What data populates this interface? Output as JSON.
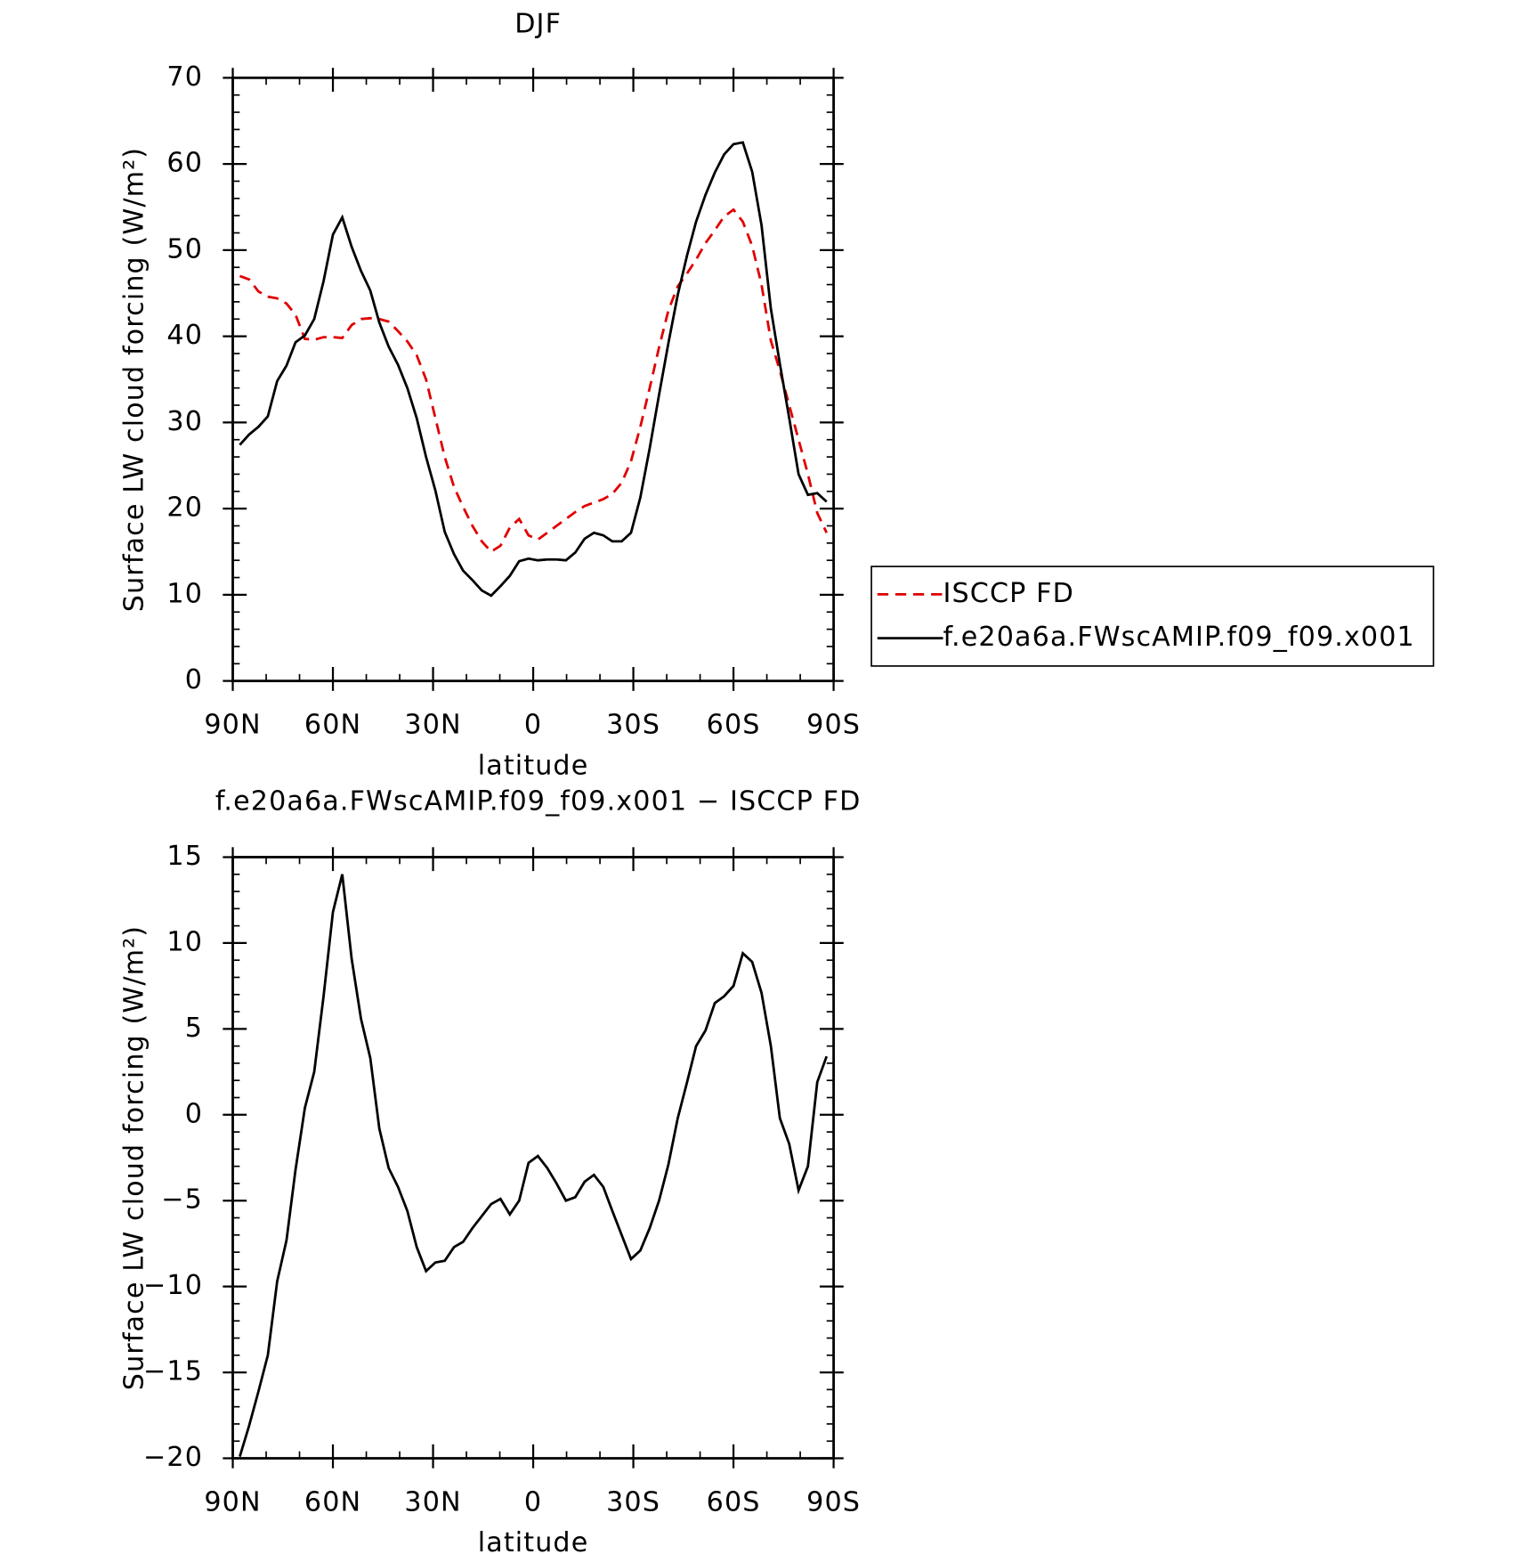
{
  "chart_data": [
    {
      "type": "line",
      "title": "DJF",
      "xlabel": "latitude",
      "ylabel": "Surface LW cloud forcing (W/m²)",
      "x": [
        87.9,
        85.1,
        82.3,
        79.5,
        76.7,
        73.9,
        71.2,
        68.4,
        65.6,
        62.8,
        60.0,
        57.2,
        54.4,
        51.6,
        48.8,
        46.1,
        43.3,
        40.5,
        37.7,
        34.9,
        32.1,
        29.3,
        26.5,
        23.7,
        21.0,
        18.2,
        15.4,
        12.6,
        9.8,
        7.0,
        4.2,
        1.4,
        -1.4,
        -4.2,
        -7.0,
        -9.8,
        -12.6,
        -15.4,
        -18.2,
        -21.0,
        -23.7,
        -26.5,
        -29.3,
        -32.1,
        -34.9,
        -37.7,
        -40.5,
        -43.3,
        -46.1,
        -48.8,
        -51.6,
        -54.4,
        -57.2,
        -60.0,
        -62.8,
        -65.6,
        -68.4,
        -71.2,
        -73.9,
        -76.7,
        -79.5,
        -82.3,
        -85.1,
        -87.9
      ],
      "series": [
        {
          "name": "ISCCP FD",
          "color": "#e00000",
          "dash": "dashed",
          "values": [
            47.0,
            46.6,
            45.2,
            44.6,
            44.4,
            43.8,
            42.5,
            39.7,
            39.6,
            39.9,
            39.9,
            39.8,
            41.3,
            42.0,
            42.1,
            42.0,
            41.7,
            40.6,
            39.4,
            37.8,
            35.0,
            30.5,
            26.0,
            22.5,
            20.2,
            18.0,
            16.2,
            15.0,
            15.7,
            17.8,
            18.8,
            16.9,
            16.4,
            17.2,
            18.0,
            18.8,
            19.6,
            20.3,
            20.7,
            21.1,
            21.7,
            23.0,
            25.5,
            29.5,
            34.0,
            38.7,
            43.0,
            45.8,
            47.3,
            48.9,
            50.8,
            52.3,
            53.9,
            54.7,
            53.3,
            50.5,
            46.0,
            39.5,
            36.0,
            32.0,
            28.0,
            24.0,
            19.5,
            17.2
          ]
        },
        {
          "name": "f.e20a6a.FWscAMIP.f09_f09.x001",
          "color": "#000000",
          "dash": "solid",
          "values": [
            27.4,
            28.6,
            29.5,
            30.7,
            34.8,
            36.6,
            39.3,
            40.1,
            42.0,
            46.4,
            51.8,
            53.8,
            50.4,
            47.6,
            45.3,
            41.6,
            38.8,
            36.7,
            34.0,
            30.5,
            26.0,
            22.1,
            17.3,
            14.7,
            12.8,
            11.7,
            10.5,
            9.9,
            11.0,
            12.2,
            13.9,
            14.2,
            14.0,
            14.1,
            14.1,
            14.0,
            14.9,
            16.5,
            17.2,
            16.9,
            16.2,
            16.2,
            17.2,
            21.3,
            27.0,
            33.2,
            39.2,
            44.8,
            49.4,
            53.3,
            56.4,
            59.0,
            61.1,
            62.3,
            62.5,
            59.1,
            52.9,
            43.2,
            36.8,
            30.5,
            24.0,
            21.6,
            21.8,
            20.8
          ]
        }
      ],
      "xlim": [
        90,
        -90
      ],
      "xticks": [
        {
          "value": 90,
          "label": "90N"
        },
        {
          "value": 60,
          "label": "60N"
        },
        {
          "value": 30,
          "label": "30N"
        },
        0,
        {
          "value": -30,
          "label": "30S"
        },
        {
          "value": -60,
          "label": "60S"
        },
        {
          "value": -90,
          "label": "90S"
        }
      ],
      "ylim": [
        0,
        70
      ],
      "yticks": [
        0,
        10,
        20,
        30,
        40,
        50,
        60,
        70
      ],
      "legend": "right"
    },
    {
      "type": "line",
      "title": "f.e20a6a.FWscAMIP.f09_f09.x001 − ISCCP FD",
      "xlabel": "latitude",
      "ylabel": "Surface LW cloud forcing (W/m²)",
      "x": [
        87.9,
        85.1,
        82.3,
        79.5,
        76.7,
        73.9,
        71.2,
        68.4,
        65.6,
        62.8,
        60.0,
        57.2,
        54.4,
        51.6,
        48.8,
        46.1,
        43.3,
        40.5,
        37.7,
        34.9,
        32.1,
        29.3,
        26.5,
        23.7,
        21.0,
        18.2,
        15.4,
        12.6,
        9.8,
        7.0,
        4.2,
        1.4,
        -1.4,
        -4.2,
        -7.0,
        -9.8,
        -12.6,
        -15.4,
        -18.2,
        -21.0,
        -23.7,
        -26.5,
        -29.3,
        -32.1,
        -34.9,
        -37.7,
        -40.5,
        -43.3,
        -46.1,
        -48.8,
        -51.6,
        -54.4,
        -57.2,
        -60.0,
        -62.8,
        -65.6,
        -68.4,
        -71.2,
        -73.9,
        -76.7,
        -79.5,
        -82.3,
        -85.1,
        -87.9
      ],
      "series": [
        {
          "color": "#000000",
          "dash": "solid",
          "values": [
            -19.9,
            -18.1,
            -16.1,
            -14.0,
            -9.7,
            -7.3,
            -3.2,
            0.4,
            2.5,
            6.9,
            11.8,
            14.0,
            9.1,
            5.6,
            3.3,
            -0.8,
            -3.1,
            -4.2,
            -5.6,
            -7.7,
            -9.1,
            -8.6,
            -8.5,
            -7.7,
            -7.4,
            -6.6,
            -5.9,
            -5.2,
            -4.9,
            -5.8,
            -5.0,
            -2.8,
            -2.4,
            -3.1,
            -4.0,
            -5.0,
            -4.8,
            -3.9,
            -3.5,
            -4.2,
            -5.6,
            -7.0,
            -8.4,
            -7.9,
            -6.6,
            -5.0,
            -2.9,
            -0.2,
            1.9,
            4.0,
            4.9,
            6.5,
            6.9,
            7.5,
            9.4,
            8.9,
            7.1,
            4.0,
            -0.2,
            -1.7,
            -4.4,
            -3.0,
            1.9,
            3.4
          ]
        }
      ],
      "xlim": [
        90,
        -90
      ],
      "xticks": [
        {
          "value": 90,
          "label": "90N"
        },
        {
          "value": 60,
          "label": "60N"
        },
        {
          "value": 30,
          "label": "30N"
        },
        0,
        {
          "value": -30,
          "label": "30S"
        },
        {
          "value": -60,
          "label": "60S"
        },
        {
          "value": -90,
          "label": "90S"
        }
      ],
      "ylim": [
        -20,
        15
      ],
      "yticks": [
        {
          "value": -20,
          "label": "−20"
        },
        {
          "value": -15,
          "label": "−15"
        },
        {
          "value": -10,
          "label": "−10"
        },
        {
          "value": -5,
          "label": "−5"
        },
        0,
        5,
        10,
        15
      ]
    }
  ]
}
